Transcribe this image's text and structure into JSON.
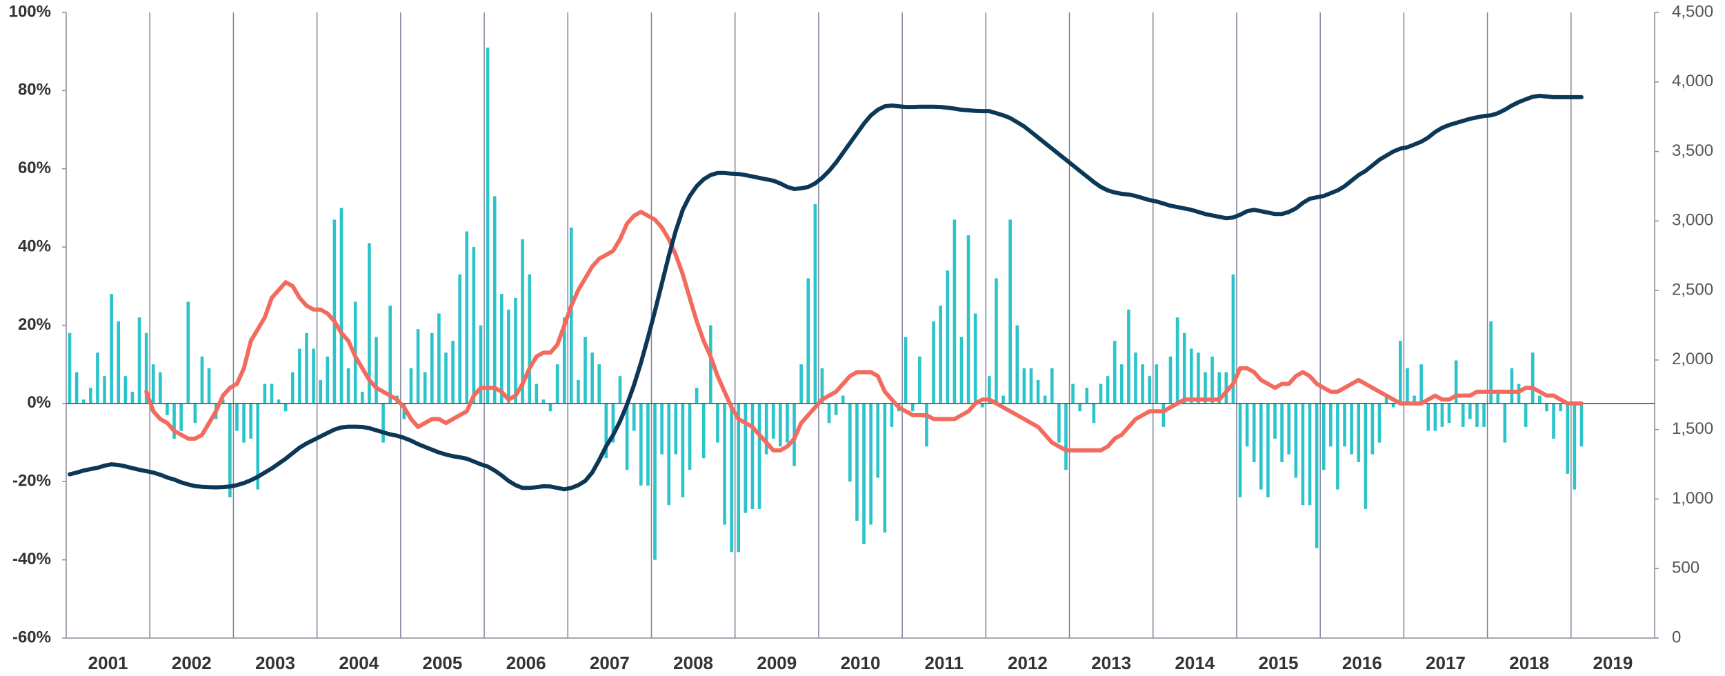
{
  "chart_data": {
    "type": "bar",
    "categories": [
      null,
      null,
      null,
      null,
      null,
      null,
      "2001",
      null,
      null,
      null,
      null,
      null,
      null,
      null,
      null,
      null,
      null,
      null,
      "2002",
      null,
      null,
      null,
      null,
      null,
      null,
      null,
      null,
      null,
      null,
      null,
      "2003",
      null,
      null,
      null,
      null,
      null,
      null,
      null,
      null,
      null,
      null,
      null,
      "2004",
      null,
      null,
      null,
      null,
      null,
      null,
      null,
      null,
      null,
      null,
      null,
      "2005",
      null,
      null,
      null,
      null,
      null,
      null,
      null,
      null,
      null,
      null,
      null,
      "2006",
      null,
      null,
      null,
      null,
      null,
      null,
      null,
      null,
      null,
      null,
      null,
      "2007",
      null,
      null,
      null,
      null,
      null,
      null,
      null,
      null,
      null,
      null,
      null,
      "2008",
      null,
      null,
      null,
      null,
      null,
      null,
      null,
      null,
      null,
      null,
      null,
      "2009",
      null,
      null,
      null,
      null,
      null,
      null,
      null,
      null,
      null,
      null,
      null,
      "2010",
      null,
      null,
      null,
      null,
      null,
      null,
      null,
      null,
      null,
      null,
      null,
      "2011",
      null,
      null,
      null,
      null,
      null,
      null,
      null,
      null,
      null,
      null,
      null,
      "2012",
      null,
      null,
      null,
      null,
      null,
      null,
      null,
      null,
      null,
      null,
      null,
      "2013",
      null,
      null,
      null,
      null,
      null,
      null,
      null,
      null,
      null,
      null,
      null,
      "2014",
      null,
      null,
      null,
      null,
      null,
      null,
      null,
      null,
      null,
      null,
      null,
      "2015",
      null,
      null,
      null,
      null,
      null,
      null,
      null,
      null,
      null,
      null,
      null,
      "2016",
      null,
      null,
      null,
      null,
      null,
      null,
      null,
      null,
      null,
      null,
      null,
      "2017",
      null,
      null,
      null,
      null,
      null,
      null,
      null,
      null,
      null,
      null,
      null,
      "2018",
      null,
      null,
      null,
      null,
      null,
      null,
      null,
      null,
      null,
      null,
      null,
      "2019",
      null,
      null,
      null,
      null,
      null
    ],
    "series": [
      {
        "type": "bar",
        "axis": "y",
        "color": "#2bc4ca",
        "values": [
          18,
          8,
          1,
          4,
          13,
          7,
          28,
          21,
          7,
          3,
          22,
          18,
          10,
          8,
          -3,
          -9,
          -7,
          26,
          -5,
          12,
          9,
          -4,
          1,
          -24,
          -7,
          -10,
          -9,
          -22,
          5,
          5,
          1,
          -2,
          8,
          14,
          18,
          14,
          6,
          12,
          47,
          50,
          9,
          26,
          3,
          41,
          17,
          -10,
          25,
          2,
          -4,
          9,
          19,
          8,
          18,
          23,
          13,
          16,
          33,
          44,
          40,
          20,
          91,
          53,
          28,
          24,
          27,
          42,
          33,
          5,
          1,
          -2,
          10,
          22,
          45,
          6,
          17,
          13,
          10,
          -14,
          -10,
          7,
          -17,
          -7,
          -21,
          -21,
          -40,
          -13,
          -26,
          -13,
          -24,
          -17,
          4,
          -14,
          20,
          -10,
          -31,
          -38,
          -38,
          -28,
          -27,
          -27,
          -13,
          -9,
          -11,
          -10,
          -16,
          10,
          32,
          51,
          9,
          -5,
          -3,
          2,
          -20,
          -30,
          -36,
          -31,
          -19,
          -33,
          -6,
          -2,
          17,
          -2,
          12,
          -11,
          21,
          25,
          34,
          47,
          17,
          43,
          23,
          -1,
          7,
          32,
          2,
          47,
          20,
          9,
          9,
          6,
          2,
          9,
          -10,
          -17,
          5,
          -2,
          4,
          -5,
          5,
          7,
          16,
          10,
          24,
          13,
          10,
          7,
          10,
          -6,
          12,
          22,
          18,
          14,
          13,
          8,
          12,
          8,
          8,
          33,
          -24,
          -11,
          -15,
          -22,
          -24,
          -9,
          -15,
          -13,
          -19,
          -26,
          -26,
          -37,
          -17,
          -11,
          -22,
          -11,
          -13,
          -15,
          -27,
          -13,
          -10,
          2,
          -1,
          16,
          9,
          2,
          10,
          -7,
          -7,
          -6,
          -5,
          11,
          -6,
          -4,
          -6,
          -6,
          21,
          3,
          -10,
          9,
          5,
          -6,
          13,
          2,
          -2,
          -9,
          -2,
          -18,
          -22,
          -11,
          null,
          null,
          null,
          null,
          null,
          null,
          null,
          null,
          null,
          null
        ]
      },
      {
        "type": "line",
        "axis": "y",
        "color": "#f36b5f",
        "values": [
          null,
          null,
          null,
          null,
          null,
          null,
          null,
          null,
          null,
          null,
          null,
          3,
          -2,
          -4,
          -5,
          -7,
          -8,
          -9,
          -9,
          -8,
          -5,
          -2,
          2,
          4,
          5,
          9,
          16,
          19,
          22,
          27,
          29,
          31,
          30,
          27,
          25,
          24,
          24,
          23,
          21,
          18,
          16,
          12,
          9,
          6,
          4,
          3,
          2,
          1,
          -1,
          -4,
          -6,
          -5,
          -4,
          -4,
          -5,
          -4,
          -3,
          -2,
          2,
          4,
          4,
          4,
          3,
          1,
          2,
          5,
          9,
          12,
          13,
          13,
          15,
          20,
          25,
          29,
          32,
          35,
          37,
          38,
          39,
          42,
          46,
          48,
          49,
          48,
          47,
          45,
          42,
          38,
          33,
          27,
          21,
          16,
          12,
          7,
          3,
          -1,
          -4,
          -5,
          -6,
          -8,
          -10,
          -12,
          -12,
          -11,
          -9,
          -5,
          -3,
          -1,
          1,
          2,
          3,
          5,
          7,
          8,
          8,
          8,
          7,
          3,
          1,
          -1,
          -2,
          -3,
          -3,
          -3,
          -4,
          -4,
          -4,
          -4,
          -3,
          -2,
          0,
          1,
          1,
          0,
          -1,
          -2,
          -3,
          -4,
          -5,
          -6,
          -8,
          -10,
          -11,
          -12,
          -12,
          -12,
          -12,
          -12,
          -12,
          -11,
          -9,
          -8,
          -6,
          -4,
          -3,
          -2,
          -2,
          -2,
          -1,
          0,
          1,
          1,
          1,
          1,
          1,
          1,
          3,
          5,
          9,
          9,
          8,
          6,
          5,
          4,
          5,
          5,
          7,
          8,
          7,
          5,
          4,
          3,
          3,
          4,
          5,
          6,
          5,
          4,
          3,
          2,
          1,
          0,
          0,
          0,
          0,
          1,
          2,
          1,
          1,
          2,
          2,
          2,
          3,
          3,
          3,
          3,
          3,
          3,
          3,
          4,
          4,
          3,
          2,
          2,
          1,
          0,
          0,
          0,
          null,
          null,
          null,
          null,
          null,
          null,
          null,
          null,
          null,
          null
        ]
      },
      {
        "type": "line",
        "axis": "y2",
        "color": "#0c3857",
        "values": [
          1178,
          1190,
          1205,
          1215,
          1225,
          1240,
          1250,
          1245,
          1235,
          1222,
          1210,
          1200,
          1190,
          1175,
          1155,
          1140,
          1120,
          1105,
          1093,
          1088,
          1085,
          1084,
          1086,
          1090,
          1100,
          1115,
          1135,
          1160,
          1190,
          1220,
          1255,
          1290,
          1330,
          1370,
          1400,
          1425,
          1450,
          1475,
          1500,
          1515,
          1520,
          1520,
          1518,
          1510,
          1495,
          1480,
          1465,
          1455,
          1440,
          1420,
          1395,
          1375,
          1355,
          1335,
          1320,
          1308,
          1300,
          1290,
          1270,
          1250,
          1234,
          1205,
          1170,
          1130,
          1100,
          1080,
          1080,
          1085,
          1092,
          1090,
          1080,
          1070,
          1080,
          1100,
          1130,
          1190,
          1280,
          1380,
          1460,
          1560,
          1680,
          1820,
          1980,
          2160,
          2350,
          2550,
          2750,
          2930,
          3080,
          3180,
          3250,
          3300,
          3330,
          3345,
          3345,
          3340,
          3338,
          3330,
          3320,
          3310,
          3300,
          3290,
          3270,
          3245,
          3230,
          3235,
          3245,
          3270,
          3310,
          3360,
          3420,
          3490,
          3560,
          3630,
          3700,
          3760,
          3800,
          3825,
          3830,
          3825,
          3820,
          3820,
          3822,
          3822,
          3822,
          3820,
          3815,
          3808,
          3800,
          3796,
          3792,
          3790,
          3790,
          3775,
          3760,
          3740,
          3710,
          3680,
          3640,
          3600,
          3560,
          3520,
          3480,
          3440,
          3400,
          3360,
          3320,
          3280,
          3245,
          3220,
          3205,
          3195,
          3190,
          3180,
          3165,
          3150,
          3140,
          3125,
          3110,
          3100,
          3090,
          3080,
          3065,
          3050,
          3040,
          3030,
          3020,
          3025,
          3045,
          3070,
          3080,
          3070,
          3060,
          3050,
          3050,
          3065,
          3090,
          3130,
          3160,
          3170,
          3180,
          3200,
          3220,
          3250,
          3290,
          3330,
          3360,
          3400,
          3440,
          3470,
          3500,
          3520,
          3530,
          3550,
          3570,
          3600,
          3640,
          3670,
          3690,
          3705,
          3720,
          3735,
          3745,
          3755,
          3760,
          3775,
          3800,
          3830,
          3855,
          3875,
          3893,
          3900,
          3895,
          3890,
          3890,
          3890,
          3890,
          3890,
          null,
          null,
          null,
          null,
          null,
          null,
          null,
          null,
          null,
          null
        ]
      }
    ],
    "ylim": [
      -60,
      100
    ],
    "yticks": [
      {
        "value": -60,
        "label": "-60%"
      },
      {
        "value": -40,
        "label": "-40%"
      },
      {
        "value": -20,
        "label": "-20%"
      },
      {
        "value": 0,
        "label": "0%"
      },
      {
        "value": 20,
        "label": "20%"
      },
      {
        "value": 40,
        "label": "40%"
      },
      {
        "value": 60,
        "label": "60%"
      },
      {
        "value": 80,
        "label": "80%"
      },
      {
        "value": 100,
        "label": "100%"
      }
    ],
    "y2lim": [
      0,
      4500
    ],
    "y2ticks": [
      0,
      500,
      {
        "value": 1000,
        "label": "1,000"
      },
      {
        "value": 1500,
        "label": "1,500"
      },
      {
        "value": 2000,
        "label": "2,000"
      },
      {
        "value": 2500,
        "label": "2,500"
      },
      {
        "value": 3000,
        "label": "3,000"
      },
      {
        "value": 3500,
        "label": "3,500"
      },
      {
        "value": 4000,
        "label": "4,000"
      },
      {
        "value": 4500,
        "label": "4,500"
      }
    ],
    "grid": true
  }
}
